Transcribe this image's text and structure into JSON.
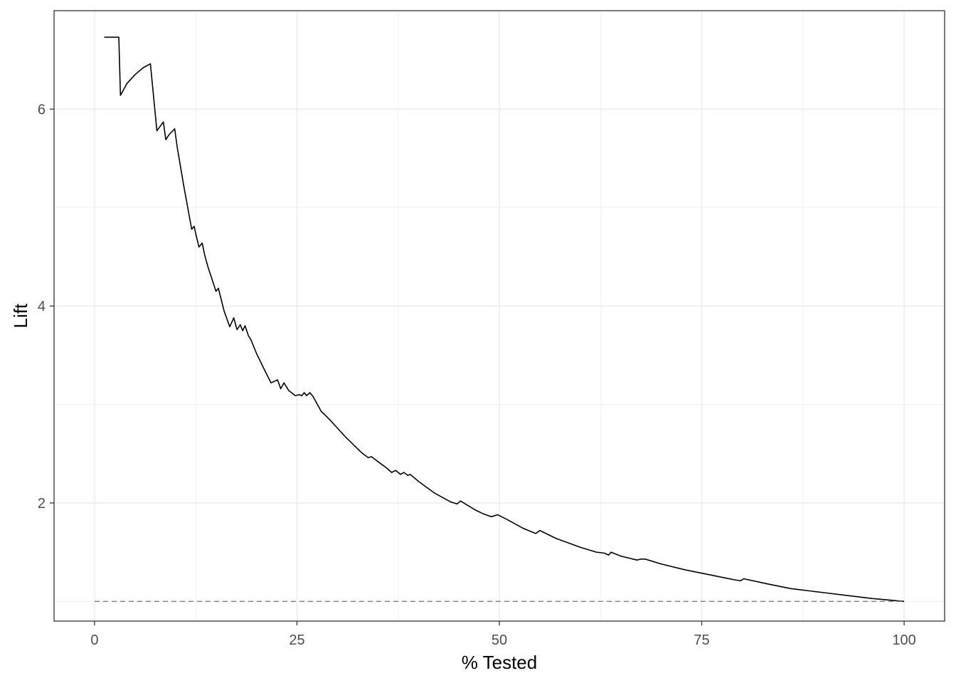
{
  "chart_data": {
    "type": "line",
    "title": "",
    "xlabel": "% Tested",
    "ylabel": "Lift",
    "xlim": [
      -5,
      105
    ],
    "ylim": [
      0.8,
      7.0
    ],
    "x_ticks": [
      0,
      25,
      50,
      75,
      100
    ],
    "x_tick_labels": [
      "0",
      "25",
      "50",
      "75",
      "100"
    ],
    "y_ticks": [
      2,
      4,
      6
    ],
    "y_tick_labels": [
      "2",
      "4",
      "6"
    ],
    "grid": true,
    "legend": "none",
    "series": [
      {
        "style": "solid",
        "color": "#000000",
        "x": [
          1.2,
          3.0,
          3.2,
          4.0,
          5.0,
          6.0,
          6.9,
          7.7,
          8.5,
          8.8,
          9.2,
          9.9,
          10.2,
          11.0,
          12.0,
          12.3,
          12.6,
          12.9,
          13.3,
          13.6,
          14.0,
          15.0,
          15.3,
          16.0,
          16.7,
          17.2,
          17.6,
          18.0,
          18.3,
          18.6,
          19.0,
          19.3,
          20.0,
          21.0,
          21.8,
          22.6,
          23.0,
          23.4,
          24.0,
          24.8,
          25.3,
          25.6,
          25.9,
          26.2,
          26.6,
          27.0,
          28.0,
          28.4,
          29.0,
          30.0,
          31.0,
          32.0,
          33.0,
          33.8,
          34.2,
          35.0,
          36.0,
          36.7,
          37.2,
          37.8,
          38.2,
          38.7,
          39.0,
          40.0,
          42.0,
          44.0,
          44.8,
          45.2,
          47.0,
          48.0,
          49.0,
          49.4,
          49.8,
          51.0,
          53.0,
          54.5,
          55.0,
          57.0,
          60.0,
          62.0,
          63.0,
          63.5,
          63.8,
          65.0,
          67.0,
          67.5,
          68.0,
          70.0,
          73.0,
          76.0,
          79.0,
          79.8,
          80.2,
          83.0,
          86.0,
          90.0,
          93.0,
          96.0,
          100.0
        ],
        "y": [
          6.73,
          6.73,
          6.14,
          6.26,
          6.35,
          6.42,
          6.46,
          5.78,
          5.87,
          5.69,
          5.74,
          5.8,
          5.62,
          5.23,
          4.78,
          4.81,
          4.7,
          4.6,
          4.64,
          4.52,
          4.4,
          4.15,
          4.18,
          3.95,
          3.79,
          3.88,
          3.76,
          3.81,
          3.75,
          3.8,
          3.7,
          3.66,
          3.52,
          3.35,
          3.22,
          3.25,
          3.16,
          3.22,
          3.14,
          3.09,
          3.1,
          3.09,
          3.12,
          3.09,
          3.12,
          3.08,
          2.93,
          2.9,
          2.85,
          2.76,
          2.67,
          2.59,
          2.51,
          2.46,
          2.47,
          2.42,
          2.36,
          2.31,
          2.33,
          2.29,
          2.31,
          2.28,
          2.29,
          2.22,
          2.1,
          2.01,
          1.99,
          2.02,
          1.93,
          1.89,
          1.86,
          1.87,
          1.88,
          1.83,
          1.74,
          1.69,
          1.72,
          1.64,
          1.55,
          1.5,
          1.49,
          1.47,
          1.5,
          1.46,
          1.42,
          1.43,
          1.43,
          1.38,
          1.32,
          1.27,
          1.22,
          1.21,
          1.23,
          1.18,
          1.13,
          1.09,
          1.06,
          1.03,
          1.0
        ]
      },
      {
        "style": "dashed",
        "color": "#808080",
        "x": [
          0,
          100
        ],
        "y": [
          1.0,
          1.0
        ]
      }
    ]
  }
}
